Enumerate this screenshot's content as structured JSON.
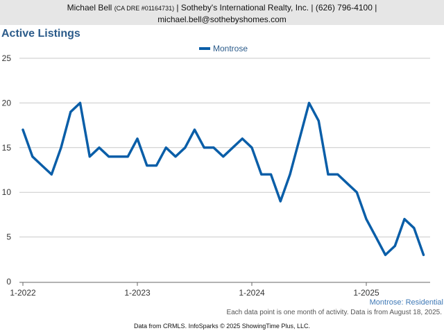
{
  "header": {
    "agent_name": "Michael Bell",
    "license": "(CA DRE #01164731)",
    "company": "| Sotheby's International Realty, Inc. | (626) 796-4100 |",
    "email": "michael.bell@sothebyshomes.com"
  },
  "footer": {
    "market_label": "Montrose: Residential",
    "note": "Each data point is one month of activity. Data is from August 18, 2025.",
    "credits": "Data from CRMLS. InfoSparks © 2025 ShowingTime Plus, LLC."
  },
  "colors": {
    "series": "#0a5ea8",
    "title": "#2b5b8a",
    "grid": "#c8c8c8"
  },
  "chart_data": {
    "type": "line",
    "title": "Active Listings",
    "xlabel": "",
    "ylabel": "",
    "ylim": [
      0,
      25
    ],
    "yticks": [
      0,
      5,
      10,
      15,
      20,
      25
    ],
    "xticks": [
      "1-2022",
      "1-2023",
      "1-2024",
      "1-2025"
    ],
    "grid": true,
    "legend": "top-center",
    "x": [
      "2022-01",
      "2022-02",
      "2022-03",
      "2022-04",
      "2022-05",
      "2022-06",
      "2022-07",
      "2022-08",
      "2022-09",
      "2022-10",
      "2022-11",
      "2022-12",
      "2023-01",
      "2023-02",
      "2023-03",
      "2023-04",
      "2023-05",
      "2023-06",
      "2023-07",
      "2023-08",
      "2023-09",
      "2023-10",
      "2023-11",
      "2023-12",
      "2024-01",
      "2024-02",
      "2024-03",
      "2024-04",
      "2024-05",
      "2024-06",
      "2024-07",
      "2024-08",
      "2024-09",
      "2024-10",
      "2024-11",
      "2024-12",
      "2025-01",
      "2025-02",
      "2025-03",
      "2025-04",
      "2025-05",
      "2025-06",
      "2025-07"
    ],
    "series": [
      {
        "name": "Montrose",
        "values": [
          17,
          14,
          13,
          12,
          15,
          19,
          20,
          14,
          15,
          14,
          14,
          14,
          16,
          13,
          13,
          15,
          14,
          15,
          17,
          15,
          15,
          14,
          15,
          16,
          15,
          12,
          12,
          9,
          12,
          16,
          20,
          18,
          12,
          12,
          11,
          10,
          7,
          5,
          3,
          4,
          7,
          6,
          3
        ]
      }
    ]
  }
}
